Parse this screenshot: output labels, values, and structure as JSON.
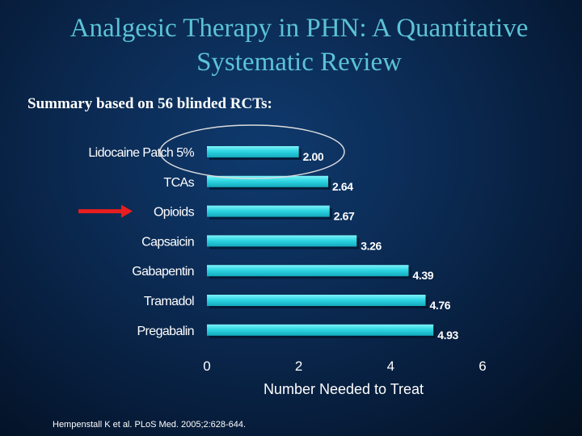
{
  "slide": {
    "title_line1": "Analgesic Therapy in PHN:  A Quantitative",
    "title_line2": "Systematic Review",
    "subtitle": "Summary based on 56 blinded RCTs:",
    "citation": "Hempenstall K et al.  PLoS Med. 2005;2:628-644."
  },
  "chart_data": {
    "type": "bar",
    "orientation": "horizontal",
    "categories": [
      "Lidocaine Patch 5%",
      "TCAs",
      "Opioids",
      "Capsaicin",
      "Gabapentin",
      "Tramadol",
      "Pregabalin"
    ],
    "values": [
      2.0,
      2.64,
      2.67,
      3.26,
      4.39,
      4.76,
      4.93
    ],
    "value_labels": [
      "2.00",
      "2.64",
      "2.67",
      "3.26",
      "4.39",
      "4.76",
      "4.93"
    ],
    "xlabel": "Number Needed to Treat",
    "ylabel": "",
    "xlim": [
      0,
      6
    ],
    "xticks": [
      "0",
      "2",
      "4",
      "6"
    ],
    "grid": false,
    "bar_color": "#2ed6e3",
    "annotations": {
      "ellipse_around": "Lidocaine Patch 5%",
      "ellipse_color": "#dddddd",
      "arrow_points_to": "Opioids",
      "arrow_color": "#e81e1e"
    }
  }
}
